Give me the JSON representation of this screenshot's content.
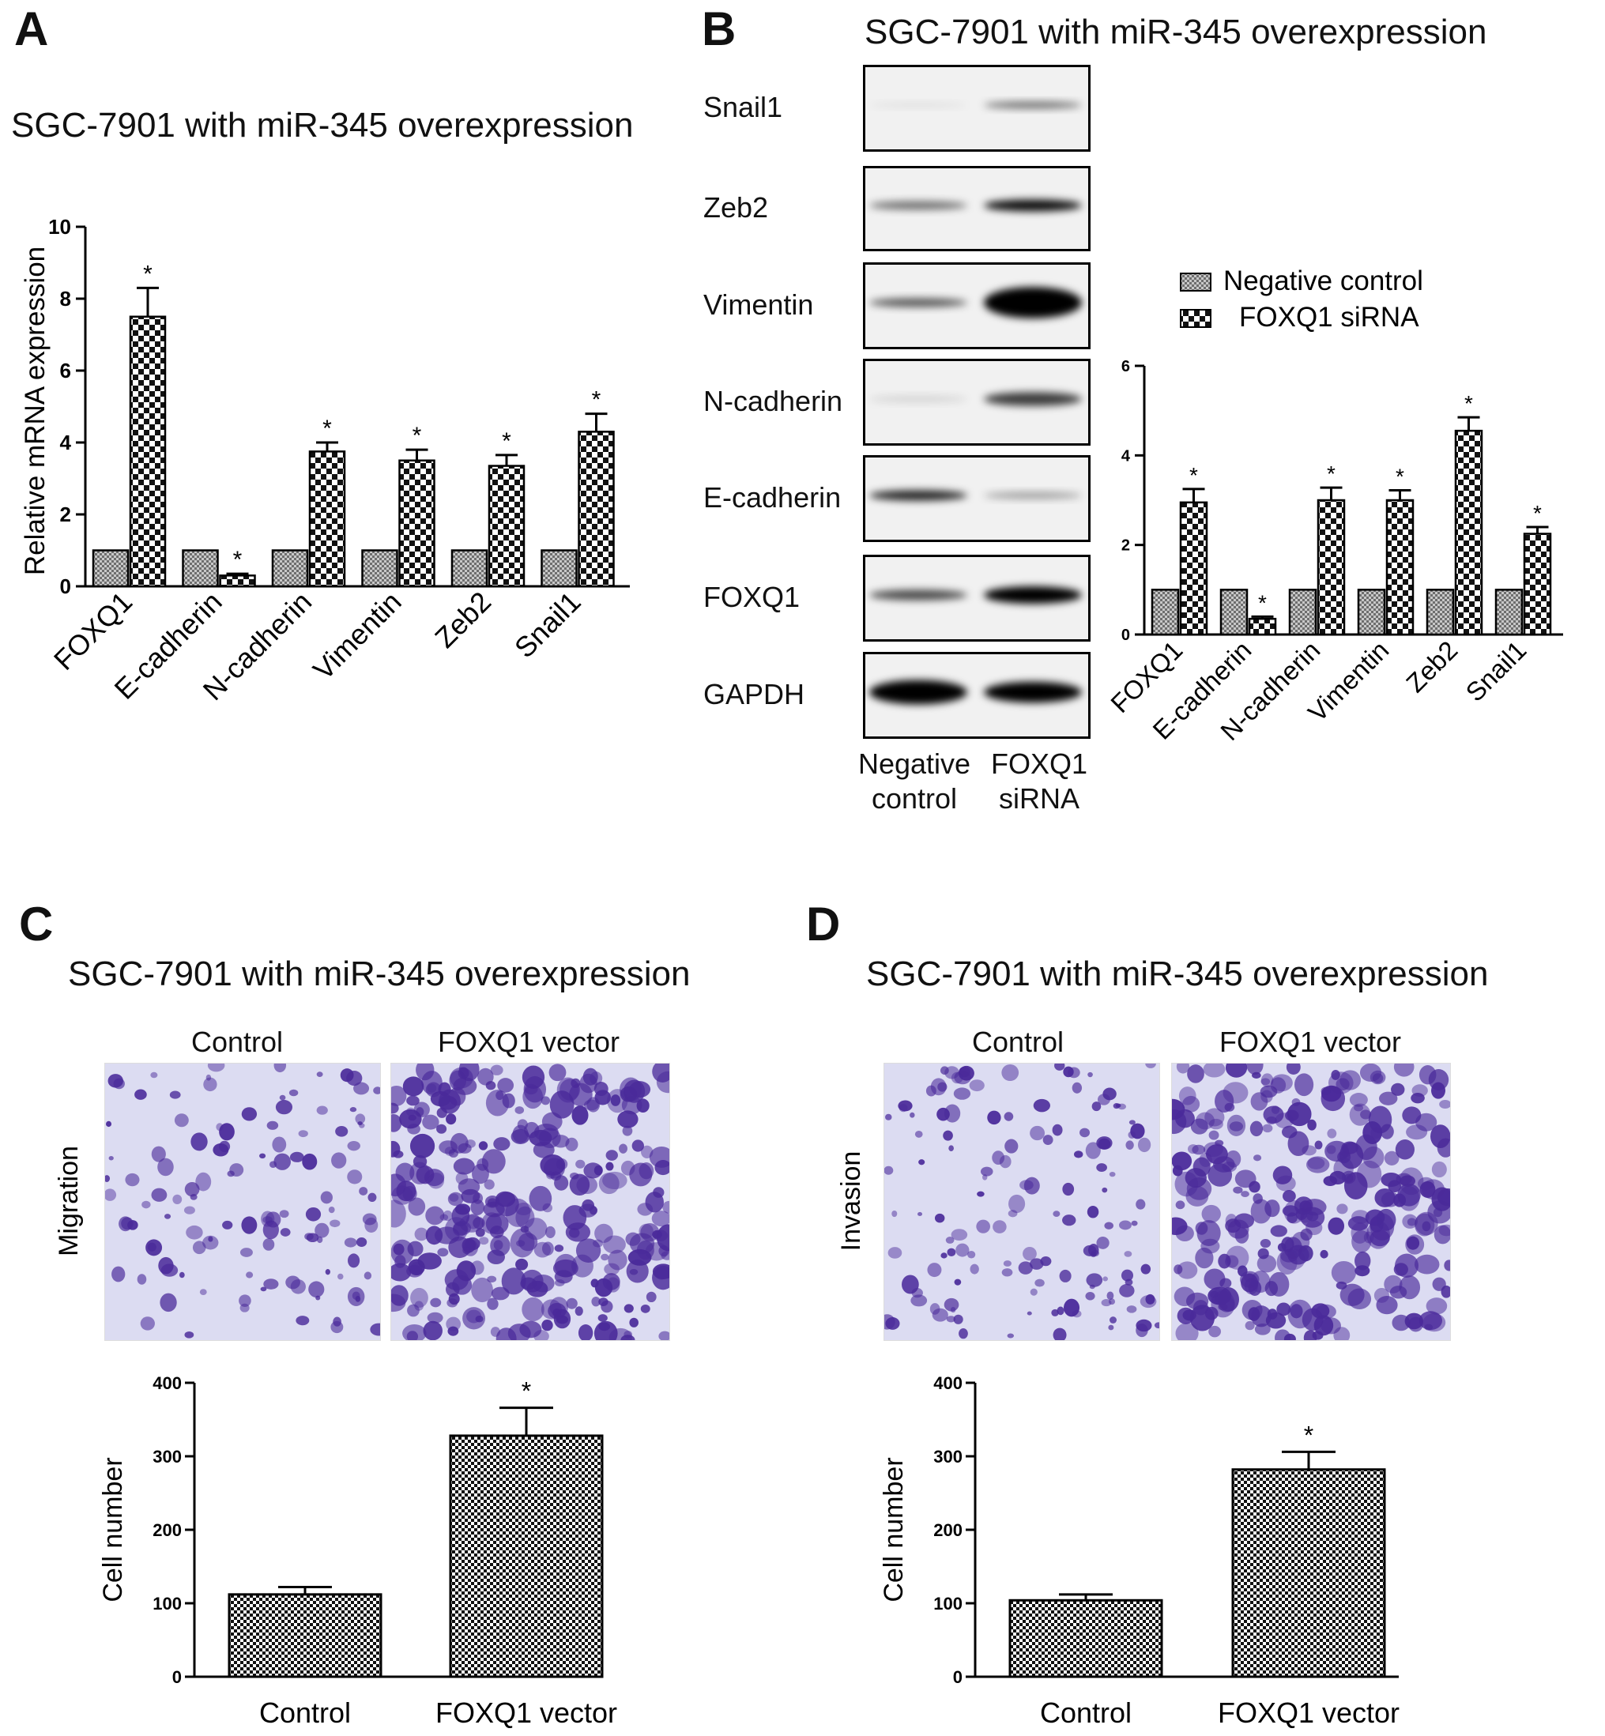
{
  "panels": {
    "A": {
      "letter": "A",
      "title": "SGC-7901 with miR-345 overexpression"
    },
    "B": {
      "letter": "B",
      "title": "SGC-7901 with miR-345 overexpression",
      "blot_rows": [
        "Snail1",
        "Zeb2",
        "Vimentin",
        "N-cadherin",
        "E-cadherin",
        "FOXQ1",
        "GAPDH"
      ],
      "blot_columns": [
        "Negative control",
        "FOXQ1 siRNA"
      ],
      "blot_col1_lines": [
        "Negative",
        "control"
      ],
      "blot_col2_lines": [
        "FOXQ1",
        "siRNA"
      ],
      "legend": [
        "Negative control",
        "FOXQ1 siRNA"
      ]
    },
    "C": {
      "letter": "C",
      "title": "SGC-7901 with miR-345 overexpression",
      "photo_labels": [
        "Control",
        "FOXQ1 vector"
      ],
      "side_label": "Migration"
    },
    "D": {
      "letter": "D",
      "title": "SGC-7901 with miR-345 overexpression",
      "photo_labels": [
        "Control",
        "FOXQ1 vector"
      ],
      "side_label": "Invasion"
    }
  },
  "colors": {
    "bar_edge": "#000000",
    "control_fill": "grey-checker",
    "treatment_fill": "black-white-checker",
    "cell_stain": "#4a2a9a",
    "photo_bg": "#dcdcf2"
  },
  "chart_data": [
    {
      "id": "A",
      "type": "bar",
      "categories": [
        "FOXQ1",
        "E-cadherin",
        "N-cadherin",
        "Vimentin",
        "Zeb2",
        "Snail1"
      ],
      "series": [
        {
          "values": [
            1,
            1,
            1,
            1,
            1,
            1
          ],
          "errors": [
            0,
            0,
            0,
            0,
            0,
            0
          ]
        },
        {
          "values": [
            7.5,
            0.3,
            3.75,
            3.5,
            3.35,
            4.3
          ],
          "errors": [
            0.8,
            0.05,
            0.25,
            0.3,
            0.3,
            0.5
          ]
        }
      ],
      "significant": [
        "",
        "",
        "",
        "",
        "",
        "",
        "*",
        "*",
        "*",
        "*",
        "*",
        "*"
      ],
      "xlabel": "",
      "ylabel": "Relative mRNA expression",
      "ylim": [
        0,
        10
      ],
      "yticks": [
        0,
        2,
        4,
        6,
        8,
        10
      ]
    },
    {
      "id": "B",
      "type": "bar",
      "categories": [
        "FOXQ1",
        "E-cadherin",
        "N-cadherin",
        "Vimentin",
        "Zeb2",
        "Snail1"
      ],
      "series": [
        {
          "name": "Negative control",
          "values": [
            1,
            1,
            1,
            1,
            1,
            1
          ],
          "errors": [
            0,
            0,
            0,
            0,
            0,
            0
          ]
        },
        {
          "name": "FOXQ1 siRNA",
          "values": [
            2.95,
            0.35,
            3.0,
            3.0,
            4.55,
            2.25
          ],
          "errors": [
            0.3,
            0.05,
            0.28,
            0.22,
            0.3,
            0.15
          ]
        }
      ],
      "significant": [
        "",
        "",
        "",
        "",
        "",
        "",
        "*",
        "*",
        "*",
        "*",
        "*",
        "*"
      ],
      "xlabel": "",
      "ylabel": "",
      "ylim": [
        0,
        6
      ],
      "yticks": [
        0,
        2,
        4,
        6
      ],
      "legend_position": "top-right"
    },
    {
      "id": "C",
      "type": "bar",
      "categories": [
        "Control",
        "FOXQ1 vector"
      ],
      "values": [
        112,
        328
      ],
      "errors": [
        10,
        38
      ],
      "significant": [
        "",
        "*"
      ],
      "xlabel": "",
      "ylabel": "Cell number",
      "ylim": [
        0,
        400
      ],
      "yticks": [
        0,
        100,
        200,
        300,
        400
      ]
    },
    {
      "id": "D",
      "type": "bar",
      "categories": [
        "Control",
        "FOXQ1 vector"
      ],
      "values": [
        104,
        282
      ],
      "errors": [
        8,
        24
      ],
      "significant": [
        "",
        "*"
      ],
      "xlabel": "",
      "ylabel": "Cell number",
      "ylim": [
        0,
        400
      ],
      "yticks": [
        0,
        100,
        200,
        300,
        400
      ]
    }
  ]
}
